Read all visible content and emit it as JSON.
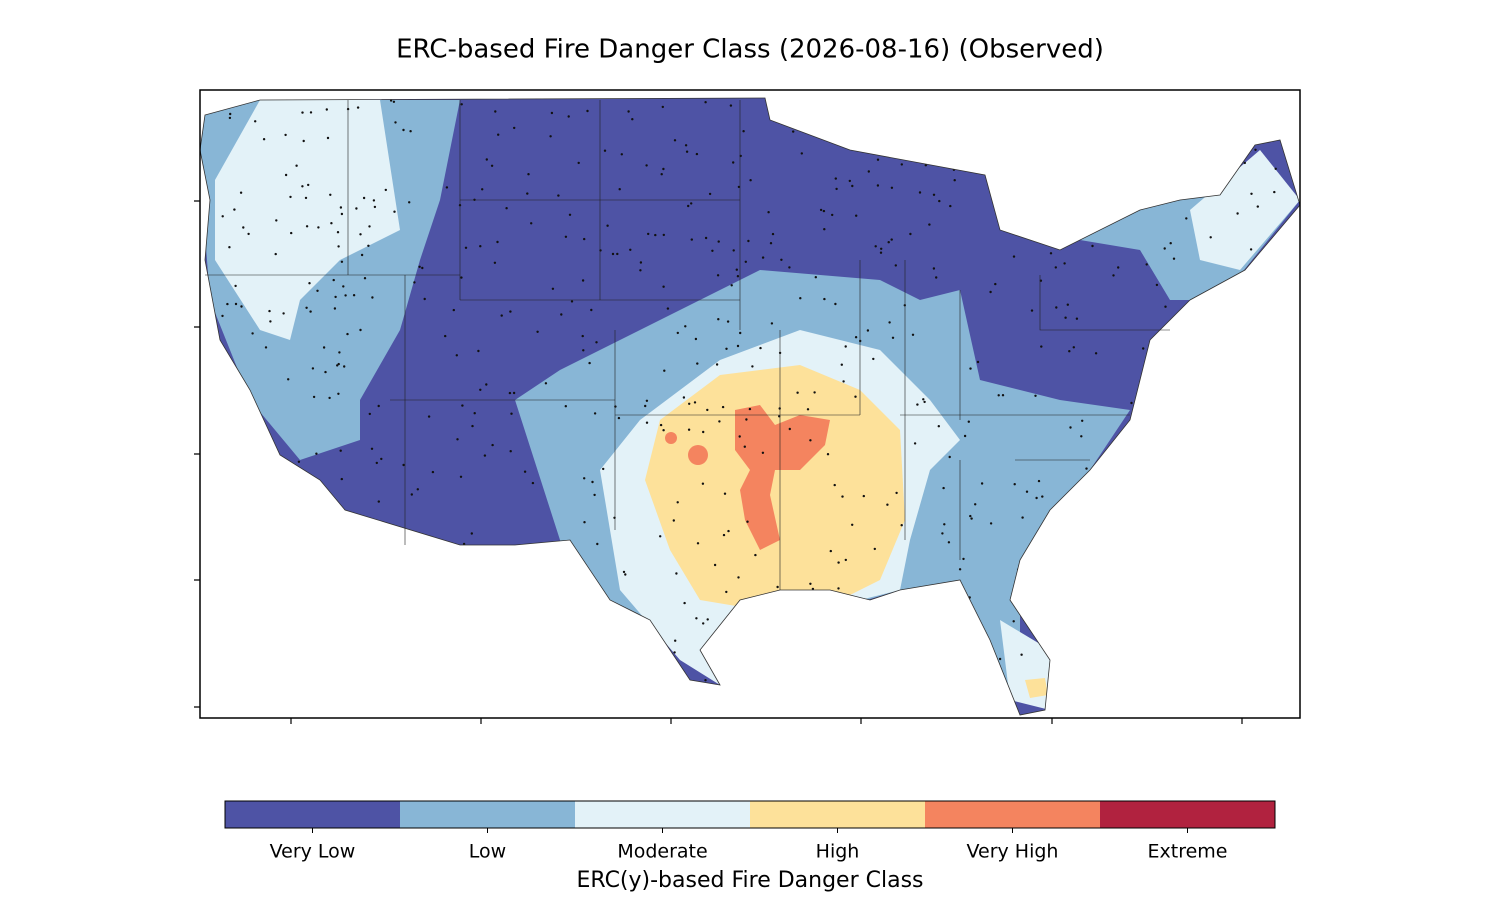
{
  "title": "ERC-based Fire Danger Class (2026-08-16) (Observed)",
  "colorbar": {
    "label": "ERC(y)-based Fire Danger Class",
    "categories": [
      {
        "label": "Very Low",
        "color": "#4e53a5"
      },
      {
        "label": "Low",
        "color": "#88b6d6"
      },
      {
        "label": "Moderate",
        "color": "#e3f2f8"
      },
      {
        "label": "High",
        "color": "#fde19a"
      },
      {
        "label": "Very High",
        "color": "#f4845f"
      },
      {
        "label": "Extreme",
        "color": "#b1223f"
      }
    ]
  }
}
